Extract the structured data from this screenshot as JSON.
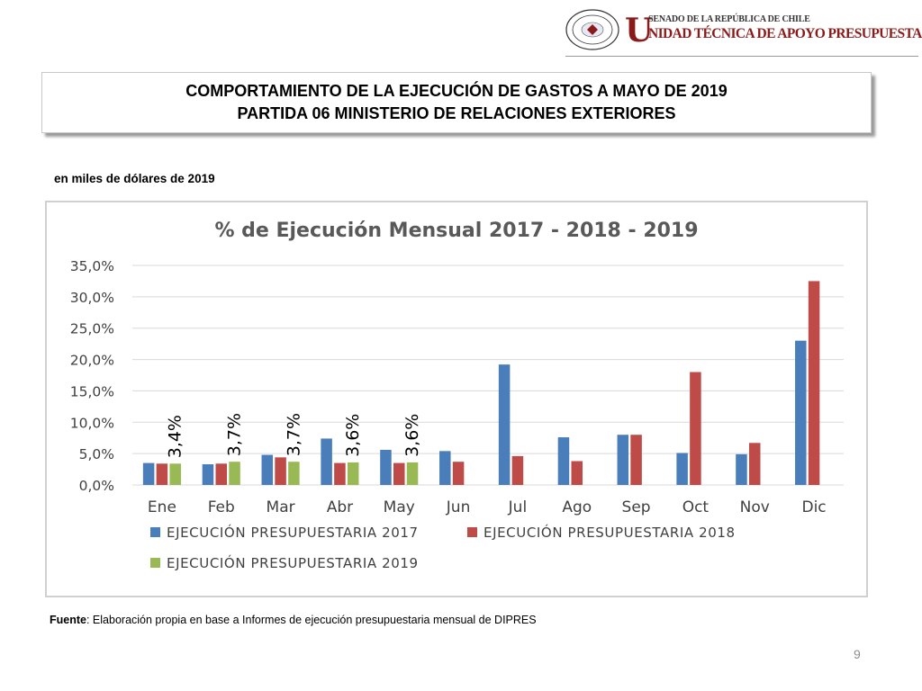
{
  "header": {
    "seal_text": "REPÚBLICA DE CHILE",
    "seal_bottom": "SENADO",
    "logo_letter": "U",
    "logo_line1": "SENADO DE LA REPÚBLICA DE CHILE",
    "logo_line2": "NIDAD TÉCNICA DE APOYO PRESUPUESTARIO"
  },
  "title": {
    "line1": "COMPORTAMIENTO DE LA EJECUCIÓN DE GASTOS A MAYO DE 2019",
    "line2": "PARTIDA 06 MINISTERIO DE RELACIONES EXTERIORES"
  },
  "units_note": "en miles de dólares de 2019",
  "source": {
    "label": "Fuente",
    "text": ": Elaboración propia en base  a Informes de ejecución presupuestaria mensual de DIPRES"
  },
  "page_number": "9",
  "chart_data": {
    "type": "bar",
    "title": "% de Ejecución Mensual 2017 - 2018 - 2019",
    "categories": [
      "Ene",
      "Feb",
      "Mar",
      "Abr",
      "May",
      "Jun",
      "Jul",
      "Ago",
      "Sep",
      "Oct",
      "Nov",
      "Dic"
    ],
    "ylim": [
      0,
      35
    ],
    "yticks": [
      0,
      5,
      10,
      15,
      20,
      25,
      30,
      35
    ],
    "ytick_labels": [
      "0,0%",
      "5,0%",
      "10,0%",
      "15,0%",
      "20,0%",
      "25,0%",
      "30,0%",
      "35,0%"
    ],
    "grid": true,
    "legend_position": "bottom",
    "series": [
      {
        "name": "EJECUCIÓN PRESUPUESTARIA 2017",
        "color": "#4a7ebb",
        "values": [
          3.5,
          3.3,
          4.8,
          7.4,
          5.6,
          5.4,
          19.2,
          7.6,
          8.0,
          5.1,
          4.9,
          23.0
        ]
      },
      {
        "name": "EJECUCIÓN PRESUPUESTARIA 2018",
        "color": "#be4b48",
        "values": [
          3.4,
          3.4,
          4.4,
          3.5,
          3.5,
          3.7,
          4.6,
          3.8,
          8.0,
          18.0,
          6.7,
          32.5
        ]
      },
      {
        "name": "EJECUCIÓN PRESUPUESTARIA 2019",
        "color": "#98b954",
        "values": [
          3.4,
          3.7,
          3.7,
          3.6,
          3.6,
          null,
          null,
          null,
          null,
          null,
          null,
          null
        ],
        "data_labels": [
          "3,4%",
          "3,7%",
          "3,7%",
          "3,6%",
          "3,6%",
          null,
          null,
          null,
          null,
          null,
          null,
          null
        ]
      }
    ]
  }
}
